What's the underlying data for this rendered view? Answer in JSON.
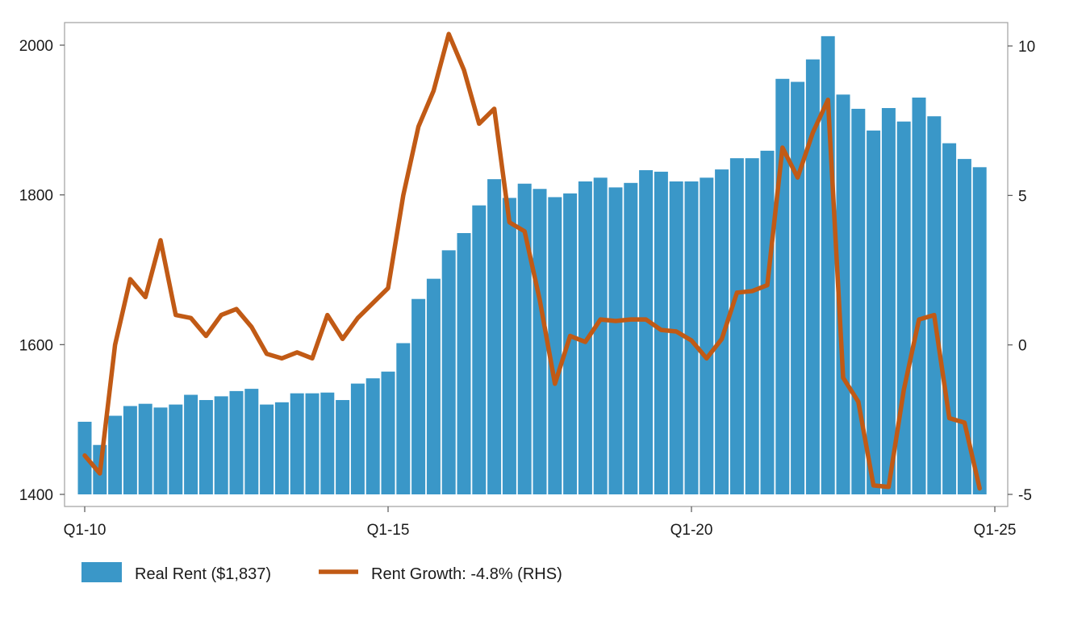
{
  "chart_data": {
    "type": "bar",
    "title": "",
    "xlabel": "",
    "ylabel": "",
    "y2label": "",
    "x_tick_labels": [
      "Q1-10",
      "Q1-15",
      "Q1-20",
      "Q1-25"
    ],
    "ylim": [
      1400,
      2030
    ],
    "y_ticks": [
      1400,
      1600,
      1800,
      2000
    ],
    "y2lim": [
      -5,
      10.4
    ],
    "y2_ticks": [
      -5,
      0,
      5,
      10
    ],
    "grid": false,
    "legend_position": "bottom-left",
    "colors": {
      "bars": "#3a97c8",
      "line": "#c15a15"
    },
    "series": [
      {
        "name": "Real Rent ($1,837)",
        "type": "bar",
        "axis": "left",
        "values": [
          1497,
          1466,
          1505,
          1518,
          1521,
          1516,
          1520,
          1533,
          1526,
          1531,
          1538,
          1541,
          1520,
          1523,
          1535,
          1535,
          1536,
          1526,
          1548,
          1555,
          1564,
          1602,
          1661,
          1688,
          1726,
          1749,
          1786,
          1821,
          1796,
          1815,
          1808,
          1797,
          1802,
          1818,
          1823,
          1810,
          1816,
          1833,
          1831,
          1818,
          1818,
          1823,
          1834,
          1849,
          1849,
          1859,
          1955,
          1951,
          1981,
          2012,
          1934,
          1915,
          1886,
          1916,
          1898,
          1930,
          1905,
          1869,
          1848,
          1837
        ]
      },
      {
        "name": "Rent Growth: -4.8% (RHS)",
        "type": "line",
        "axis": "right",
        "values": [
          -3.7,
          -4.3,
          0,
          2.2,
          1.6,
          3.5,
          1,
          0.9,
          0.3,
          1,
          1.2,
          0.6,
          -0.3,
          -0.45,
          -0.25,
          -0.45,
          1,
          0.2,
          0.9,
          1.4,
          1.9,
          5,
          7.3,
          8.5,
          10.4,
          9.2,
          7.4,
          7.9,
          4.1,
          3.8,
          1.5,
          -1.3,
          0.3,
          0.1,
          0.85,
          0.8,
          0.85,
          0.85,
          0.5,
          0.45,
          0.15,
          -0.45,
          0.2,
          1.75,
          1.8,
          2,
          6.6,
          5.6,
          7.1,
          8.2,
          -1.1,
          -1.9,
          -4.7,
          -4.75,
          -1.5,
          0.85,
          1,
          -2.45,
          -2.6,
          -4.8
        ]
      }
    ]
  }
}
